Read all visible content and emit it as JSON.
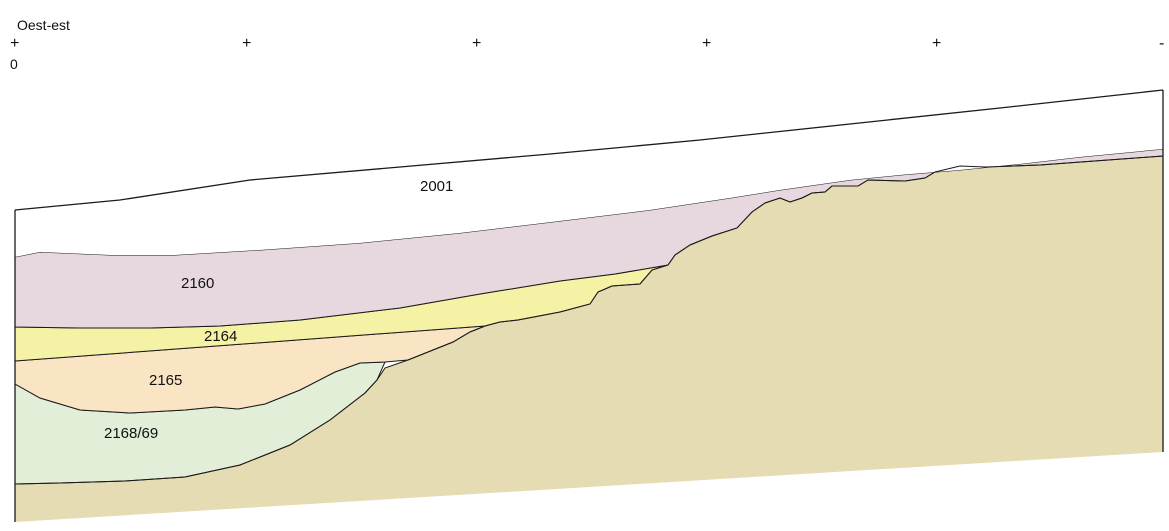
{
  "header": {
    "section_title": "Oest-est",
    "origin_label": "0",
    "tick_marks": [
      "+",
      "+",
      "+",
      "+",
      "+",
      "-"
    ]
  },
  "layers": [
    {
      "id": "2001",
      "label": "2001",
      "fill": "#ffffff"
    },
    {
      "id": "2160",
      "label": "2160",
      "fill": "#e6d8de"
    },
    {
      "id": "2164",
      "label": "2164",
      "fill": "#f5f2a6"
    },
    {
      "id": "2165",
      "label": "2165",
      "fill": "#f9e5c3"
    },
    {
      "id": "2168-69",
      "label": "2168/69",
      "fill": "#e2eed8"
    },
    {
      "id": "substrate",
      "label": "",
      "fill": "#e6dcb3"
    }
  ],
  "colors": {
    "outline": "#1a1a1a"
  }
}
